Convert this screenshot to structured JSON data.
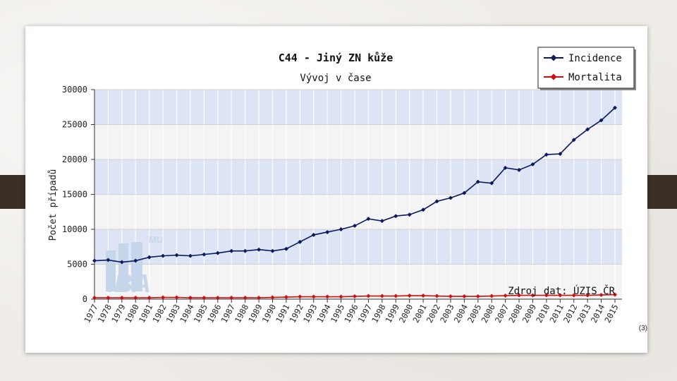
{
  "chart_data": {
    "type": "line",
    "title": "C44 - Jiný ZN kůže",
    "subtitle": "Vývoj v čase",
    "ylabel": "Počet případů",
    "xlabel": "",
    "ylim": [
      0,
      30000
    ],
    "y_ticks": [
      0,
      5000,
      10000,
      15000,
      20000,
      25000,
      30000
    ],
    "grid": true,
    "legend_position": "top-right",
    "categories": [
      "1977",
      "1978",
      "1979",
      "1980",
      "1981",
      "1982",
      "1983",
      "1984",
      "1985",
      "1986",
      "1987",
      "1988",
      "1989",
      "1990",
      "1991",
      "1992",
      "1993",
      "1994",
      "1995",
      "1996",
      "1997",
      "1998",
      "1999",
      "2000",
      "2001",
      "2002",
      "2003",
      "2004",
      "2005",
      "2006",
      "2007",
      "2008",
      "2009",
      "2010",
      "2011",
      "2012",
      "2013",
      "2014",
      "2015"
    ],
    "series": [
      {
        "name": "Incidence",
        "color": "#0a1a5c",
        "values": [
          5500,
          5600,
          5300,
          5500,
          6000,
          6200,
          6300,
          6200,
          6400,
          6600,
          6900,
          6900,
          7100,
          6900,
          7200,
          8200,
          9200,
          9600,
          10000,
          10500,
          11500,
          11200,
          11900,
          12100,
          12800,
          14000,
          14500,
          15200,
          16800,
          16600,
          18800,
          18500,
          19300,
          20700,
          20800,
          22800,
          24300,
          25600,
          27400
        ]
      },
      {
        "name": "Mortalita",
        "color": "#cc1111",
        "values": [
          200,
          200,
          200,
          200,
          200,
          250,
          250,
          200,
          200,
          200,
          200,
          200,
          200,
          250,
          300,
          350,
          350,
          350,
          350,
          400,
          450,
          450,
          450,
          500,
          500,
          450,
          400,
          400,
          400,
          450,
          500,
          550,
          550,
          550,
          550,
          550,
          550,
          600,
          650
        ]
      }
    ],
    "annotation": "Zdroj dat: ÚZIS ČR",
    "watermark": "IBA",
    "watermark_small": "MU"
  },
  "reference": "(3)"
}
